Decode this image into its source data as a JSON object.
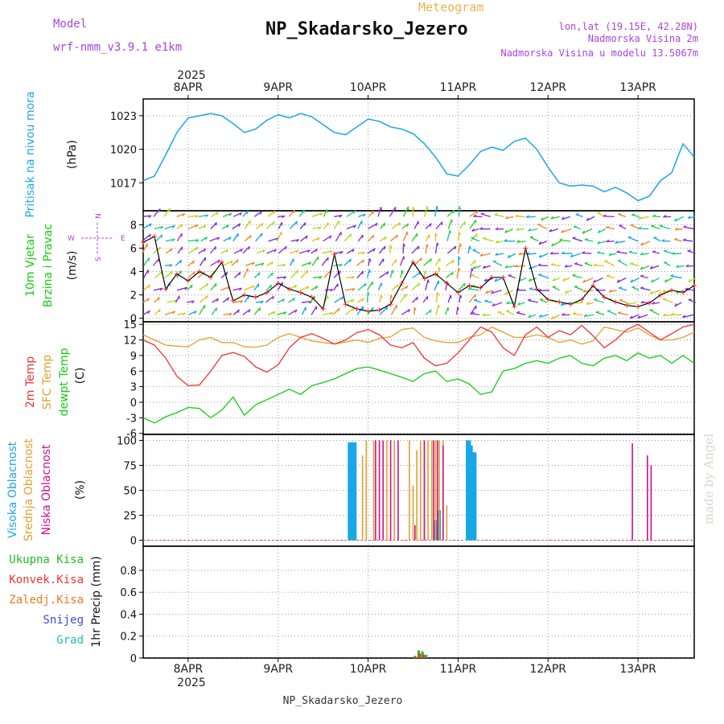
{
  "header": {
    "model_label": "Model",
    "model_name": "wrf-nmm_v3.9.1 e1km",
    "meteogram_label": "Meteogram",
    "station_title": "NP_Skadarsko_Jezero",
    "lonlat": "lon,lat (19.15E, 42.28N)",
    "elevation": "Nadmorska Visina 2m",
    "model_elevation": "Nadmorska Visina u modelu 13.5067m",
    "year_top": "2025",
    "year_bottom": "2025",
    "footer_station": "NP_Skadarsko_Jezero",
    "watermark": "made by Angel"
  },
  "colors": {
    "pressure": "#1aa7e6",
    "wind_speed": "#000000",
    "gust_marker": "#ff2222",
    "temp_2m": "#ee3333",
    "sfc_temp": "#e0a030",
    "dewpoint": "#11cc11",
    "cloud_high": "#1aa7e6",
    "cloud_mid": "#e0a030",
    "cloud_low": "#cc1188",
    "label_purple": "#aa44dd",
    "label_orange": "#f0b050",
    "precip_total": "#22bb22",
    "precip_conv": "#ee3333",
    "precip_frozen": "#ee7722",
    "precip_snow": "#4444dd",
    "precip_grad": "#22bbbb"
  },
  "chart_data": [
    {
      "type": "line",
      "panel": "pressure",
      "ylabel": [
        "Pritisak na nivou mora",
        "(hPa)"
      ],
      "ylim": [
        1014.5,
        1024.5
      ],
      "yticks": [
        1017,
        1020,
        1023
      ],
      "x_unit": "hours since 2025-04-07 12:00",
      "x": [
        0,
        3,
        6,
        9,
        12,
        15,
        18,
        21,
        24,
        27,
        30,
        33,
        36,
        39,
        42,
        45,
        48,
        51,
        54,
        57,
        60,
        63,
        66,
        69,
        72,
        75,
        78,
        81,
        84,
        87,
        90,
        93,
        96,
        99,
        102,
        105,
        108,
        111,
        114,
        117,
        120,
        123,
        126,
        129,
        132,
        135,
        138,
        141,
        144,
        147
      ],
      "series": [
        {
          "values": [
            1017.2,
            1017.6,
            1019.5,
            1021.5,
            1022.8,
            1023.0,
            1023.2,
            1023.0,
            1022.3,
            1021.5,
            1021.8,
            1022.6,
            1023.1,
            1022.8,
            1023.2,
            1022.9,
            1022.2,
            1021.5,
            1021.3,
            1022.0,
            1022.7,
            1022.5,
            1022.0,
            1021.8,
            1021.4,
            1020.5,
            1019.3,
            1017.8,
            1017.6,
            1018.6,
            1019.8,
            1020.2,
            1019.9,
            1020.7,
            1021.0,
            1020.0,
            1018.4,
            1017.0,
            1016.7,
            1016.8,
            1016.7,
            1016.2,
            1016.6,
            1016.1,
            1015.4,
            1015.8,
            1017.2,
            1017.9,
            1020.5,
            1019.3
          ]
        }
      ],
      "grid": true
    },
    {
      "type": "line",
      "panel": "wind",
      "ylabel": [
        "10m Vjetar",
        "Brzina i Pravac",
        "(m/s)"
      ],
      "ylim": [
        -0.3,
        9.2
      ],
      "yticks": [
        0,
        2,
        4,
        6,
        8
      ],
      "x_unit": "hours since 2025-04-07 12:00",
      "x": [
        0,
        3,
        6,
        9,
        12,
        15,
        18,
        21,
        24,
        27,
        30,
        33,
        36,
        39,
        42,
        45,
        48,
        51,
        54,
        57,
        60,
        63,
        66,
        69,
        72,
        75,
        78,
        81,
        84,
        87,
        90,
        93,
        96,
        99,
        102,
        105,
        108,
        111,
        114,
        117,
        120,
        123,
        126,
        129,
        132,
        135,
        138,
        141,
        144,
        147
      ],
      "series": [
        {
          "name": "wind speed",
          "values": [
            6.5,
            7.0,
            2.5,
            3.8,
            3.2,
            4.0,
            3.5,
            4.8,
            1.5,
            2.0,
            1.8,
            2.2,
            3.0,
            2.5,
            2.2,
            1.8,
            0.8,
            5.5,
            1.2,
            0.8,
            0.6,
            0.7,
            1.2,
            3.0,
            4.8,
            3.4,
            3.8,
            3.0,
            2.2,
            2.8,
            2.6,
            3.5,
            3.5,
            1.0,
            6.0,
            2.5,
            1.6,
            1.4,
            1.2,
            1.6,
            2.8,
            1.8,
            1.4,
            1.1,
            1.0,
            1.3,
            2.0,
            2.4,
            2.2,
            2.8
          ]
        }
      ],
      "direction_legend": {
        "n": "N",
        "w": "W",
        "e": "E",
        "s": "S"
      },
      "grid": true
    },
    {
      "type": "line",
      "panel": "temperature",
      "ylabel": [
        "2m Temp",
        "SFC Temp",
        "dewpt Temp",
        "(C)"
      ],
      "ylim": [
        -6.2,
        15.5
      ],
      "yticks": [
        -6,
        -3,
        0,
        3,
        6,
        9,
        12,
        15
      ],
      "x_unit": "hours since 2025-04-07 12:00",
      "x": [
        0,
        3,
        6,
        9,
        12,
        15,
        18,
        21,
        24,
        27,
        30,
        33,
        36,
        39,
        42,
        45,
        48,
        51,
        54,
        57,
        60,
        63,
        66,
        69,
        72,
        75,
        78,
        81,
        84,
        87,
        90,
        93,
        96,
        99,
        102,
        105,
        108,
        111,
        114,
        117,
        120,
        123,
        126,
        129,
        132,
        135,
        138,
        141,
        144,
        147
      ],
      "series": [
        {
          "name": "2m Temp",
          "values": [
            12.0,
            11.0,
            8.5,
            5.0,
            3.2,
            3.3,
            6.0,
            9.0,
            9.6,
            8.8,
            6.8,
            5.8,
            7.2,
            10.5,
            12.5,
            13.2,
            12.3,
            11.2,
            12.0,
            13.4,
            14.0,
            13.0,
            11.0,
            10.5,
            11.5,
            8.5,
            7.0,
            7.5,
            9.5,
            12.0,
            14.5,
            13.5,
            10.5,
            9.0,
            13.0,
            14.5,
            12.5,
            13.8,
            13.0,
            14.8,
            12.8,
            10.5,
            12.0,
            14.0,
            15.0,
            13.5,
            12.0,
            13.2,
            14.5,
            15.0
          ]
        },
        {
          "name": "SFC Temp",
          "values": [
            13.0,
            12.0,
            11.0,
            10.8,
            10.7,
            12.0,
            12.5,
            11.5,
            11.5,
            10.7,
            10.6,
            11.0,
            12.5,
            13.2,
            12.5,
            11.8,
            11.5,
            11.2,
            11.6,
            12.0,
            11.5,
            12.3,
            12.6,
            14.0,
            14.3,
            12.5,
            11.8,
            11.5,
            11.5,
            12.5,
            13.0,
            14.5,
            13.5,
            12.5,
            12.5,
            13.0,
            12.5,
            11.5,
            12.0,
            11.2,
            11.8,
            14.5,
            14.0,
            13.5,
            14.3,
            13.0,
            12.0,
            12.0,
            12.5,
            13.5
          ]
        },
        {
          "name": "dewpt Temp",
          "values": [
            -3.0,
            -4.0,
            -2.8,
            -2.0,
            -1.0,
            -1.2,
            -3.0,
            -1.5,
            1.0,
            -2.5,
            -0.5,
            0.5,
            1.5,
            2.5,
            1.5,
            3.2,
            3.8,
            4.5,
            5.5,
            6.5,
            6.8,
            6.2,
            5.5,
            4.8,
            4.0,
            5.5,
            6.0,
            4.0,
            4.5,
            3.5,
            1.5,
            2.0,
            6.0,
            6.5,
            7.5,
            8.0,
            7.5,
            8.5,
            9.0,
            7.5,
            7.0,
            8.5,
            9.0,
            8.0,
            9.5,
            8.5,
            9.0,
            7.5,
            9.0,
            7.5
          ]
        }
      ],
      "grid": true
    },
    {
      "type": "bar",
      "panel": "clouds",
      "ylabel": [
        "Visoka Oblacnost",
        "Srednja Oblacnost",
        "Niska Oblacnost",
        "(%)"
      ],
      "ylim": [
        -6,
        106
      ],
      "yticks": [
        0,
        25,
        50,
        75,
        100
      ],
      "x_unit": "hours since 2025-04-07 12:00",
      "series": [
        {
          "name": "Visoka Oblacnost",
          "x": [
            55,
            55.5,
            56,
            56.5,
            78,
            79,
            86.5,
            87,
            87.5,
            88,
            88.5
          ],
          "values": [
            98,
            98,
            98,
            98,
            20,
            30,
            100,
            100,
            95,
            88,
            88
          ]
        },
        {
          "name": "Srednja Oblacnost",
          "x": [
            58.5,
            59.5,
            61.5,
            65,
            67,
            71,
            72,
            73,
            74,
            75,
            76,
            77,
            78,
            79,
            80,
            81
          ],
          "values": [
            85,
            100,
            100,
            100,
            100,
            100,
            55,
            90,
            100,
            100,
            100,
            100,
            100,
            100,
            100,
            35
          ]
        },
        {
          "name": "Niska Oblacnost",
          "x": [
            62,
            63,
            64,
            66,
            68,
            72.5,
            75,
            77.5,
            78.5,
            80,
            130.5,
            134.5,
            135.5
          ],
          "values": [
            100,
            100,
            100,
            100,
            100,
            15,
            100,
            100,
            100,
            95,
            97,
            85,
            75
          ]
        }
      ],
      "grid": true
    },
    {
      "type": "bar",
      "panel": "precipitation",
      "ylabel": [
        "1hr Precip (mm)"
      ],
      "ylim": [
        0,
        1.02
      ],
      "yticks": [
        0,
        0.2,
        0.4,
        0.6,
        0.8
      ],
      "x_unit": "hours since 2025-04-07 12:00",
      "series": [
        {
          "name": "Ukupna Kisa",
          "x": [
            72.5,
            73.5,
            74.5,
            75.5
          ],
          "values": [
            0.02,
            0.07,
            0.06,
            0.03
          ]
        },
        {
          "name": "Konvek.Kisa",
          "x": [
            72.8,
            73.8,
            74.8
          ],
          "values": [
            0.01,
            0.04,
            0.03
          ]
        },
        {
          "name": "Zaledj.Kisa",
          "x": [],
          "values": []
        },
        {
          "name": "Snijeg",
          "x": [],
          "values": []
        },
        {
          "name": "Grad",
          "x": [],
          "values": []
        }
      ],
      "grid": true
    }
  ],
  "x_axis": {
    "day_labels": [
      "8APR",
      "9APR",
      "10APR",
      "11APR",
      "12APR",
      "13APR"
    ],
    "day_ticks_hours": [
      12,
      36,
      60,
      84,
      108,
      132
    ],
    "range_hours": [
      0,
      147
    ]
  }
}
